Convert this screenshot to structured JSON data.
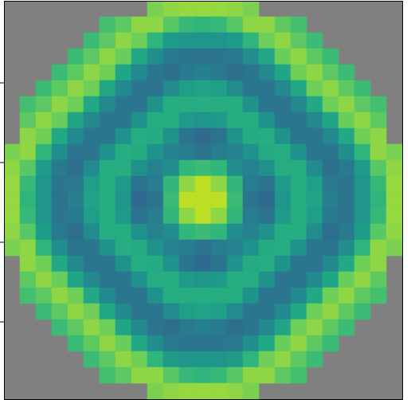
{
  "chart_data": {
    "type": "heatmap",
    "cells": [
      [
        null,
        null,
        null,
        null,
        null,
        null,
        null,
        null,
        null,
        80,
        83,
        84,
        84,
        84,
        83,
        80,
        null,
        null,
        null,
        null,
        null,
        null,
        null,
        null,
        null
      ],
      [
        null,
        null,
        null,
        null,
        null,
        null,
        70,
        75,
        83,
        83,
        74,
        67,
        65,
        67,
        74,
        83,
        83,
        75,
        70,
        null,
        null,
        null,
        null,
        null,
        null
      ],
      [
        null,
        null,
        null,
        null,
        null,
        68,
        75,
        83,
        78,
        65,
        55,
        52,
        52,
        52,
        55,
        65,
        78,
        83,
        75,
        68,
        null,
        null,
        null,
        null,
        null
      ],
      [
        null,
        null,
        null,
        null,
        68,
        75,
        83,
        77,
        60,
        49,
        41,
        39,
        38,
        39,
        41,
        49,
        60,
        77,
        83,
        75,
        68,
        null,
        null,
        null,
        null
      ],
      [
        null,
        null,
        null,
        68,
        75,
        83,
        78,
        59,
        47,
        39,
        36,
        41,
        43,
        41,
        36,
        39,
        47,
        59,
        78,
        83,
        75,
        68,
        null,
        null,
        null
      ],
      [
        null,
        null,
        68,
        75,
        83,
        78,
        60,
        47,
        39,
        39,
        48,
        56,
        58,
        56,
        48,
        39,
        39,
        47,
        60,
        78,
        83,
        75,
        68,
        null,
        null
      ],
      [
        null,
        70,
        75,
        83,
        78,
        60,
        47,
        39,
        39,
        51,
        62,
        62,
        62,
        62,
        62,
        51,
        39,
        39,
        47,
        60,
        78,
        83,
        75,
        70,
        null
      ],
      [
        null,
        75,
        83,
        77,
        59,
        47,
        39,
        39,
        51,
        62,
        62,
        54,
        52,
        54,
        62,
        62,
        51,
        39,
        39,
        47,
        59,
        77,
        83,
        75,
        null
      ],
      [
        null,
        83,
        78,
        60,
        47,
        39,
        39,
        51,
        62,
        61,
        51,
        38,
        34,
        38,
        51,
        61,
        62,
        51,
        39,
        39,
        47,
        60,
        78,
        83,
        null
      ],
      [
        80,
        83,
        65,
        49,
        39,
        39,
        51,
        62,
        61,
        51,
        44,
        42,
        38,
        42,
        44,
        51,
        61,
        62,
        51,
        39,
        39,
        49,
        65,
        83,
        80
      ],
      [
        83,
        74,
        55,
        41,
        36,
        48,
        62,
        62,
        51,
        44,
        49,
        66,
        68,
        66,
        49,
        44,
        51,
        62,
        62,
        48,
        36,
        41,
        55,
        74,
        83
      ],
      [
        84,
        67,
        52,
        39,
        41,
        56,
        62,
        54,
        38,
        42,
        66,
        83,
        90,
        83,
        66,
        42,
        38,
        54,
        62,
        56,
        41,
        39,
        52,
        67,
        84
      ],
      [
        84,
        65,
        52,
        38,
        43,
        58,
        62,
        52,
        34,
        38,
        68,
        90,
        90,
        90,
        68,
        38,
        34,
        52,
        62,
        58,
        43,
        38,
        52,
        65,
        84
      ],
      [
        84,
        67,
        52,
        39,
        41,
        56,
        62,
        54,
        38,
        42,
        66,
        83,
        90,
        83,
        66,
        42,
        38,
        54,
        62,
        56,
        41,
        39,
        52,
        67,
        84
      ],
      [
        83,
        74,
        55,
        41,
        36,
        48,
        62,
        62,
        51,
        44,
        49,
        66,
        68,
        66,
        49,
        44,
        51,
        62,
        62,
        48,
        36,
        41,
        55,
        74,
        83
      ],
      [
        80,
        83,
        65,
        49,
        39,
        39,
        51,
        62,
        61,
        51,
        44,
        42,
        38,
        42,
        44,
        51,
        61,
        62,
        51,
        39,
        39,
        49,
        65,
        83,
        80
      ],
      [
        null,
        83,
        78,
        60,
        47,
        39,
        39,
        51,
        62,
        61,
        51,
        38,
        34,
        38,
        51,
        61,
        62,
        51,
        39,
        39,
        47,
        60,
        78,
        83,
        null
      ],
      [
        null,
        75,
        83,
        77,
        59,
        47,
        39,
        39,
        51,
        62,
        62,
        54,
        52,
        54,
        62,
        62,
        51,
        39,
        39,
        47,
        59,
        77,
        83,
        75,
        null
      ],
      [
        null,
        70,
        75,
        83,
        78,
        60,
        47,
        39,
        39,
        51,
        62,
        62,
        62,
        62,
        62,
        51,
        39,
        39,
        47,
        60,
        78,
        83,
        75,
        70,
        null
      ],
      [
        null,
        null,
        68,
        75,
        83,
        78,
        60,
        47,
        39,
        39,
        48,
        56,
        58,
        56,
        48,
        39,
        39,
        47,
        60,
        78,
        83,
        75,
        68,
        null,
        null
      ],
      [
        null,
        null,
        null,
        68,
        75,
        83,
        78,
        59,
        47,
        39,
        36,
        41,
        43,
        41,
        36,
        39,
        47,
        59,
        78,
        83,
        75,
        68,
        null,
        null,
        null
      ],
      [
        null,
        null,
        null,
        null,
        68,
        75,
        83,
        77,
        60,
        49,
        41,
        39,
        38,
        39,
        41,
        49,
        60,
        77,
        83,
        75,
        68,
        null,
        null,
        null,
        null
      ],
      [
        null,
        null,
        null,
        null,
        null,
        68,
        75,
        83,
        78,
        65,
        55,
        52,
        52,
        52,
        55,
        65,
        78,
        83,
        75,
        68,
        null,
        null,
        null,
        null,
        null
      ],
      [
        null,
        null,
        null,
        null,
        null,
        null,
        70,
        75,
        83,
        83,
        74,
        67,
        65,
        67,
        74,
        83,
        83,
        75,
        70,
        null,
        null,
        null,
        null,
        null,
        null
      ],
      [
        null,
        null,
        null,
        null,
        null,
        null,
        null,
        null,
        null,
        80,
        83,
        84,
        84,
        84,
        83,
        80,
        null,
        null,
        null,
        null,
        null,
        null,
        null,
        null,
        null
      ]
    ],
    "xlim": [
      -0.5,
      99.5
    ],
    "ylim": [
      99.5,
      -0.5
    ],
    "yticks": [
      20,
      40,
      60,
      80
    ],
    "tick_labels": false,
    "color_range": [
      0,
      100
    ],
    "color": "viridis"
  }
}
